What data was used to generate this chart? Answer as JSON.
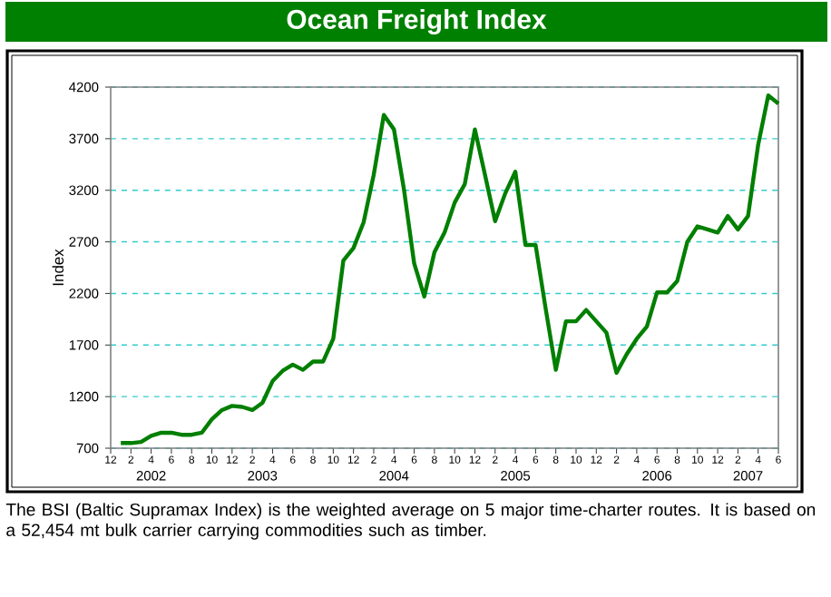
{
  "chart_data": {
    "type": "line",
    "title": "Ocean Freight Index",
    "ylabel": "Index",
    "x": [
      "2002-01",
      "2002-02",
      "2002-03",
      "2002-04",
      "2002-05",
      "2002-06",
      "2002-07",
      "2002-08",
      "2002-09",
      "2002-10",
      "2002-11",
      "2002-12",
      "2003-01",
      "2003-02",
      "2003-03",
      "2003-04",
      "2003-05",
      "2003-06",
      "2003-07",
      "2003-08",
      "2003-09",
      "2003-10",
      "2003-11",
      "2003-12",
      "2004-01",
      "2004-02",
      "2004-03",
      "2004-04",
      "2004-05",
      "2004-06",
      "2004-07",
      "2004-08",
      "2004-09",
      "2004-10",
      "2004-11",
      "2004-12",
      "2005-01",
      "2005-02",
      "2005-03",
      "2005-04",
      "2005-05",
      "2005-06",
      "2005-07",
      "2005-08",
      "2005-09",
      "2005-10",
      "2005-11",
      "2005-12",
      "2006-01",
      "2006-02",
      "2006-03",
      "2006-04",
      "2006-05",
      "2006-06",
      "2006-07",
      "2006-08",
      "2006-09",
      "2006-10",
      "2006-11",
      "2006-12",
      "2007-01",
      "2007-02",
      "2007-03",
      "2007-04",
      "2007-05",
      "2007-06"
    ],
    "series": [
      {
        "color": "#007f00",
        "values": [
          750,
          750,
          760,
          820,
          850,
          850,
          830,
          830,
          850,
          980,
          1070,
          1110,
          1100,
          1070,
          1140,
          1350,
          1450,
          1510,
          1460,
          1540,
          1540,
          1760,
          2520,
          2640,
          2890,
          3350,
          3930,
          3790,
          3200,
          2490,
          2170,
          2600,
          2790,
          3080,
          3260,
          3790,
          3350,
          2900,
          3170,
          3380,
          2670,
          2670,
          2050,
          1460,
          1930,
          1930,
          2040,
          1930,
          1820,
          1430,
          1610,
          1760,
          1880,
          2210,
          2210,
          2320,
          2700,
          2850,
          2820,
          2790,
          2950,
          2820,
          2950,
          3640,
          4120,
          4040
        ]
      }
    ],
    "xlim": [
      "2001-12",
      "2007-06"
    ],
    "xticks": [
      {
        "value": "2001-12",
        "label": "12"
      },
      {
        "value": "2002-02",
        "label": "2"
      },
      {
        "value": "2002-04",
        "label": "4"
      },
      {
        "value": "2002-06",
        "label": "6"
      },
      {
        "value": "2002-08",
        "label": "8"
      },
      {
        "value": "2002-10",
        "label": "10"
      },
      {
        "value": "2002-12",
        "label": "12"
      },
      {
        "value": "2003-02",
        "label": "2"
      },
      {
        "value": "2003-04",
        "label": "4"
      },
      {
        "value": "2003-06",
        "label": "6"
      },
      {
        "value": "2003-08",
        "label": "8"
      },
      {
        "value": "2003-10",
        "label": "10"
      },
      {
        "value": "2003-12",
        "label": "12"
      },
      {
        "value": "2004-02",
        "label": "2"
      },
      {
        "value": "2004-04",
        "label": "4"
      },
      {
        "value": "2004-06",
        "label": "6"
      },
      {
        "value": "2004-08",
        "label": "8"
      },
      {
        "value": "2004-10",
        "label": "10"
      },
      {
        "value": "2004-12",
        "label": "12"
      },
      {
        "value": "2005-02",
        "label": "2"
      },
      {
        "value": "2005-04",
        "label": "4"
      },
      {
        "value": "2005-06",
        "label": "6"
      },
      {
        "value": "2005-08",
        "label": "8"
      },
      {
        "value": "2005-10",
        "label": "10"
      },
      {
        "value": "2005-12",
        "label": "12"
      },
      {
        "value": "2006-02",
        "label": "2"
      },
      {
        "value": "2006-04",
        "label": "4"
      },
      {
        "value": "2006-06",
        "label": "6"
      },
      {
        "value": "2006-08",
        "label": "8"
      },
      {
        "value": "2006-10",
        "label": "10"
      },
      {
        "value": "2006-12",
        "label": "12"
      },
      {
        "value": "2007-02",
        "label": "2"
      },
      {
        "value": "2007-04",
        "label": "4"
      },
      {
        "value": "2007-06",
        "label": "6"
      }
    ],
    "x2lim": [
      "2001-12",
      "2007-06"
    ],
    "x2ticks": [
      {
        "value": "2002-04",
        "label": "2002"
      },
      {
        "value": "2003-03",
        "label": "2003"
      },
      {
        "value": "2004-04",
        "label": "2004"
      },
      {
        "value": "2005-04",
        "label": "2005"
      },
      {
        "value": "2006-06",
        "label": "2006"
      },
      {
        "value": "2007-03",
        "label": "2007"
      }
    ],
    "ylim": [
      700,
      4200
    ],
    "yticks": [
      700,
      1200,
      1700,
      2200,
      2700,
      3200,
      3700,
      4200
    ],
    "grid": "y",
    "annotations": [
      "The BSI (Baltic Supramax Index) is the weighted average on 5 major time-charter routes. It is based on a 52,454 mt bulk carrier carrying commodities such as timber."
    ]
  }
}
